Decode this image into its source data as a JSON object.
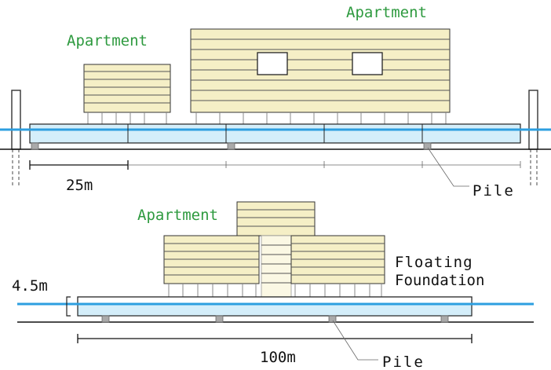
{
  "top_view": {
    "apartment_small_label": "Apartment",
    "apartment_large_label": "Apartment",
    "span_label": "25m",
    "pile_label": "Pile"
  },
  "side_view": {
    "apartment_label": "Apartment",
    "height_label": "4.5m",
    "floating_label_line1": "Floating",
    "floating_label_line2": "Foundation",
    "length_label": "100m",
    "pile_label": "Pile"
  },
  "colors": {
    "building_wall": "#f5efc6",
    "water": "#2d9fe0",
    "float_fill": "#d4eefa",
    "label_green": "#2e9a3f"
  }
}
